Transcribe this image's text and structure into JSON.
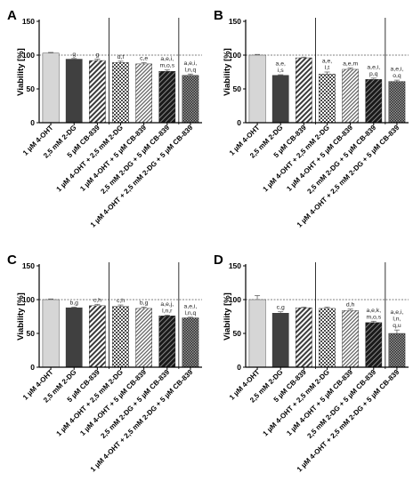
{
  "figure": {
    "colors": {
      "axis": "#000000",
      "bar_outline": "#222222",
      "reference_line": "#555555",
      "light_gray": "#d6d6d6",
      "dark_gray": "#404040",
      "black": "#1a1a1a",
      "pattern_dark": "#3a3a3a",
      "error_bar": "#666666"
    },
    "bar_styles": [
      "light-gray",
      "dark-gray",
      "wide-diagonal",
      "checker",
      "fine-diagonal",
      "black-diagonal",
      "dense-checker"
    ]
  },
  "chart_data": [
    {
      "panel_letter": "A",
      "type": "bar",
      "ylabel": "Viability [%]",
      "ylim": [
        0,
        150
      ],
      "yticks": [
        "0",
        "50",
        "100",
        "150"
      ],
      "reference_line": 100,
      "group_dividers_after": [
        2,
        5
      ],
      "categories": [
        "1 µM 4-OHT",
        "2,5 mM 2-DG",
        "5 µM CB-839",
        "1 µM 4-OHT + 2,5 mM 2-DG",
        "1 µM 4-OHT + 5 µM CB-839",
        "2,5 mM 2-DG + 5 µM CB-839",
        "1 µM 4-OHT + 2,5 mM 2-DG + 5 µM CB-839"
      ],
      "values": [
        103,
        94,
        92,
        89,
        87,
        76,
        70
      ],
      "errors": [
        1,
        1,
        2,
        2,
        2,
        2,
        2
      ],
      "annotations": [
        [],
        [
          "g"
        ],
        [
          "g"
        ],
        [
          "d,f"
        ],
        [
          "c,e"
        ],
        [
          "a,e,i,",
          "m,o,s"
        ],
        [
          "a,e,i,",
          "l,n,q"
        ]
      ]
    },
    {
      "panel_letter": "B",
      "type": "bar",
      "ylabel": "Viability [%]",
      "ylim": [
        0,
        150
      ],
      "yticks": [
        "0",
        "50",
        "100",
        "150"
      ],
      "reference_line": 100,
      "group_dividers_after": [
        2,
        5
      ],
      "categories": [
        "1 µM 4-OHT",
        "2,5 mM 2-DG",
        "5 µM CB-839",
        "1 µM 4-OHT + 2,5 mM 2-DG",
        "1 µM 4-OHT + 5 µM CB-839",
        "2,5 mM 2-DG + 5 µM CB-839",
        "1 µM 4-OHT + 2,5 mM 2-DG + 5 µM CB-839"
      ],
      "values": [
        100,
        70,
        96,
        72,
        79,
        64,
        61
      ],
      "errors": [
        1,
        1,
        1,
        3,
        2,
        2,
        2
      ],
      "annotations": [
        [],
        [
          "a,e,",
          "i,s"
        ],
        [],
        [
          "a,e,",
          "l,t"
        ],
        [
          "a,e,m"
        ],
        [
          "a,e,i,",
          "p,q"
        ],
        [
          "a,e,i,",
          "o,q"
        ]
      ]
    },
    {
      "panel_letter": "C",
      "type": "bar",
      "ylabel": "Viability [%]",
      "ylim": [
        0,
        150
      ],
      "yticks": [
        "0",
        "50",
        "100",
        "150"
      ],
      "reference_line": 100,
      "group_dividers_after": [
        2,
        5
      ],
      "categories": [
        "1 µM 4-OHT",
        "2,5 mM 2-DG",
        "5 µM CB-839",
        "1 µM 4-OHT + 2,5 mM 2-DG",
        "1 µM 4-OHT + 5 µM CB-839",
        "2,5 mM 2-DG + 5 µM CB-839",
        "1 µM 4-OHT + 2,5 mM 2-DG + 5 µM CB-839"
      ],
      "values": [
        100,
        88,
        91,
        90,
        87,
        76,
        73
      ],
      "errors": [
        1,
        1,
        2,
        2,
        2,
        1,
        1
      ],
      "annotations": [
        [],
        [
          "b,g"
        ],
        [
          "c,h"
        ],
        [
          "c,h"
        ],
        [
          "b,g"
        ],
        [
          "a,e,j,",
          "l,n,r"
        ],
        [
          "a,e,i,",
          "l,n,q"
        ]
      ]
    },
    {
      "panel_letter": "D",
      "type": "bar",
      "ylabel": "Viability [%]",
      "ylim": [
        0,
        150
      ],
      "yticks": [
        "0",
        "50",
        "100",
        "150"
      ],
      "reference_line": 100,
      "group_dividers_after": [
        2,
        5
      ],
      "categories": [
        "1 µM 4-OHT",
        "2,5 mM 2-DG",
        "5 µM CB-839",
        "1 µM 4-OHT + 2,5 mM 2-DG",
        "1 µM 4-OHT + 5 µM CB-839",
        "2,5 mM 2-DG + 5 µM CB-839",
        "1 µM 4-OHT + 2,5 mM 2-DG + 5 µM CB-839"
      ],
      "values": [
        100,
        80,
        88,
        87,
        84,
        66,
        50
      ],
      "errors": [
        6,
        2,
        1,
        2,
        2,
        2,
        5
      ],
      "annotations": [
        [],
        [
          "c,g"
        ],
        [],
        [],
        [
          "d,h"
        ],
        [
          "a,e,k,",
          "m,o,s"
        ],
        [
          "a,e,i,",
          "l,n,",
          "q,u"
        ]
      ]
    }
  ]
}
